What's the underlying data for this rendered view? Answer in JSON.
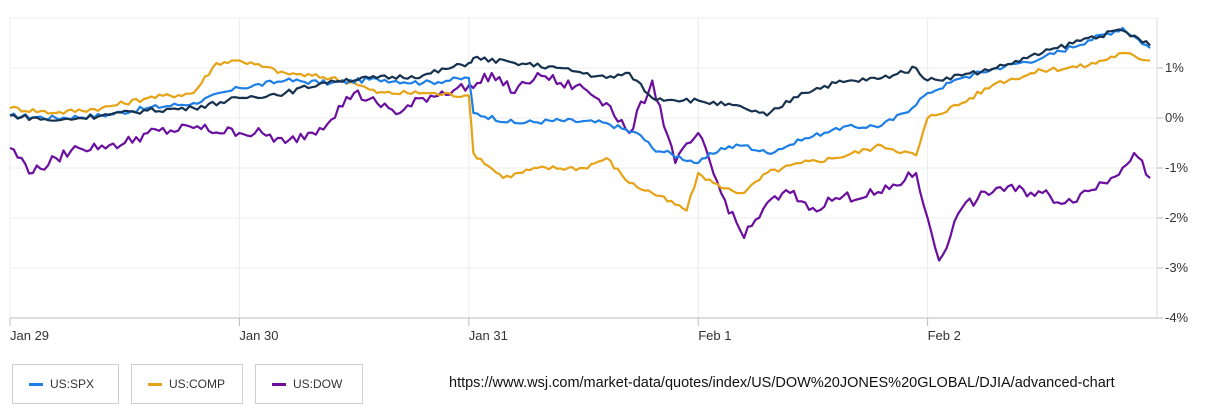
{
  "chart_data": {
    "type": "line",
    "x_axis": {
      "tick_labels": [
        "Jan 29",
        "Jan 30",
        "Jan 31",
        "Feb 1",
        "Feb 2"
      ],
      "tick_positions": [
        0,
        1,
        2,
        3,
        4
      ],
      "range": [
        0,
        5
      ]
    },
    "y_axis": {
      "tick_labels": [
        "1%",
        "0%",
        "-1%",
        "-2%",
        "-3%",
        "-4%"
      ],
      "ticks": [
        1,
        0,
        -1,
        -2,
        -3,
        -4
      ],
      "range": [
        -4,
        2
      ]
    },
    "grid": true,
    "legend_position": "bottom-left",
    "series": [
      {
        "name": "US:SPX",
        "color": "#1e7fe6",
        "points": [
          [
            0,
            0.05
          ],
          [
            0.2,
            0.0
          ],
          [
            0.4,
            0.05
          ],
          [
            0.6,
            0.2
          ],
          [
            0.8,
            0.3
          ],
          [
            1.0,
            0.6
          ],
          [
            1.2,
            0.75
          ],
          [
            1.4,
            0.7
          ],
          [
            1.6,
            0.78
          ],
          [
            1.8,
            0.7
          ],
          [
            2.0,
            0.8
          ],
          [
            2.02,
            0.1
          ],
          [
            2.2,
            -0.1
          ],
          [
            2.4,
            -0.05
          ],
          [
            2.6,
            -0.1
          ],
          [
            2.75,
            -0.35
          ],
          [
            2.8,
            -0.6
          ],
          [
            3.0,
            -0.9
          ],
          [
            3.1,
            -0.6
          ],
          [
            3.2,
            -0.55
          ],
          [
            3.3,
            -0.7
          ],
          [
            3.45,
            -0.45
          ],
          [
            3.6,
            -0.2
          ],
          [
            3.8,
            -0.15
          ],
          [
            3.9,
            0.1
          ],
          [
            4.0,
            0.5
          ],
          [
            4.15,
            0.8
          ],
          [
            4.3,
            1.0
          ],
          [
            4.5,
            1.2
          ],
          [
            4.7,
            1.55
          ],
          [
            4.85,
            1.8
          ],
          [
            4.97,
            1.4
          ]
        ]
      },
      {
        "name": "US:COMP",
        "color": "#e6a316",
        "points": [
          [
            0,
            0.2
          ],
          [
            0.2,
            0.1
          ],
          [
            0.4,
            0.2
          ],
          [
            0.6,
            0.4
          ],
          [
            0.8,
            0.5
          ],
          [
            0.9,
            1.1
          ],
          [
            1.0,
            1.15
          ],
          [
            1.2,
            0.9
          ],
          [
            1.4,
            0.8
          ],
          [
            1.5,
            0.7
          ],
          [
            1.6,
            0.5
          ],
          [
            1.8,
            0.5
          ],
          [
            2.0,
            0.45
          ],
          [
            2.02,
            -0.7
          ],
          [
            2.15,
            -1.2
          ],
          [
            2.3,
            -1.0
          ],
          [
            2.5,
            -1.0
          ],
          [
            2.6,
            -0.8
          ],
          [
            2.7,
            -1.3
          ],
          [
            2.8,
            -1.5
          ],
          [
            2.95,
            -1.85
          ],
          [
            3.0,
            -1.1
          ],
          [
            3.1,
            -1.4
          ],
          [
            3.2,
            -1.5
          ],
          [
            3.3,
            -1.1
          ],
          [
            3.45,
            -0.9
          ],
          [
            3.6,
            -0.8
          ],
          [
            3.8,
            -0.55
          ],
          [
            3.95,
            -0.75
          ],
          [
            4.0,
            0.0
          ],
          [
            4.15,
            0.3
          ],
          [
            4.3,
            0.7
          ],
          [
            4.5,
            0.95
          ],
          [
            4.7,
            1.05
          ],
          [
            4.85,
            1.3
          ],
          [
            4.97,
            1.15
          ]
        ]
      },
      {
        "name": "US:DOW",
        "color": "#6a0f9e",
        "points": [
          [
            0,
            -0.6
          ],
          [
            0.1,
            -1.1
          ],
          [
            0.2,
            -0.8
          ],
          [
            0.3,
            -0.6
          ],
          [
            0.4,
            -0.55
          ],
          [
            0.5,
            -0.5
          ],
          [
            0.6,
            -0.3
          ],
          [
            0.8,
            -0.2
          ],
          [
            1.0,
            -0.3
          ],
          [
            1.1,
            -0.3
          ],
          [
            1.2,
            -0.5
          ],
          [
            1.35,
            -0.2
          ],
          [
            1.5,
            0.5
          ],
          [
            1.6,
            0.3
          ],
          [
            1.7,
            0.1
          ],
          [
            1.8,
            0.4
          ],
          [
            1.95,
            0.6
          ],
          [
            2.02,
            0.6
          ],
          [
            2.1,
            0.9
          ],
          [
            2.2,
            0.5
          ],
          [
            2.3,
            0.9
          ],
          [
            2.4,
            0.7
          ],
          [
            2.5,
            0.6
          ],
          [
            2.6,
            0.3
          ],
          [
            2.7,
            -0.3
          ],
          [
            2.8,
            0.75
          ],
          [
            2.9,
            -0.9
          ],
          [
            3.0,
            -0.3
          ],
          [
            3.1,
            -1.5
          ],
          [
            3.2,
            -2.4
          ],
          [
            3.3,
            -1.7
          ],
          [
            3.4,
            -1.5
          ],
          [
            3.5,
            -1.8
          ],
          [
            3.6,
            -1.6
          ],
          [
            3.8,
            -1.5
          ],
          [
            3.95,
            -1.1
          ],
          [
            4.0,
            -2.0
          ],
          [
            4.05,
            -2.85
          ],
          [
            4.15,
            -1.8
          ],
          [
            4.3,
            -1.4
          ],
          [
            4.5,
            -1.5
          ],
          [
            4.6,
            -1.7
          ],
          [
            4.8,
            -1.2
          ],
          [
            4.9,
            -0.7
          ],
          [
            4.97,
            -1.2
          ]
        ]
      },
      {
        "name": "",
        "color": "#17324f",
        "points": [
          [
            0,
            0.05
          ],
          [
            0.2,
            -0.05
          ],
          [
            0.4,
            0.05
          ],
          [
            0.6,
            0.15
          ],
          [
            0.8,
            0.2
          ],
          [
            1.0,
            0.4
          ],
          [
            1.2,
            0.5
          ],
          [
            1.4,
            0.75
          ],
          [
            1.6,
            0.8
          ],
          [
            1.8,
            0.85
          ],
          [
            2.0,
            1.1
          ],
          [
            2.02,
            1.2
          ],
          [
            2.2,
            1.1
          ],
          [
            2.4,
            1.0
          ],
          [
            2.6,
            0.8
          ],
          [
            2.7,
            0.9
          ],
          [
            2.8,
            0.4
          ],
          [
            3.0,
            0.35
          ],
          [
            3.2,
            0.2
          ],
          [
            3.3,
            0.05
          ],
          [
            3.45,
            0.5
          ],
          [
            3.6,
            0.7
          ],
          [
            3.8,
            0.8
          ],
          [
            3.95,
            1.0
          ],
          [
            4.0,
            0.75
          ],
          [
            4.15,
            0.85
          ],
          [
            4.3,
            1.0
          ],
          [
            4.5,
            1.3
          ],
          [
            4.7,
            1.6
          ],
          [
            4.85,
            1.75
          ],
          [
            4.97,
            1.45
          ]
        ]
      }
    ]
  },
  "legend": {
    "items": [
      {
        "label": "US:SPX",
        "color": "#1e7fe6"
      },
      {
        "label": "US:COMP",
        "color": "#e6a316"
      },
      {
        "label": "US:DOW",
        "color": "#6a0f9e"
      }
    ]
  },
  "source_url": "https://www.wsj.com/market-data/quotes/index/US/DOW%20JONES%20GLOBAL/DJIA/advanced-chart"
}
